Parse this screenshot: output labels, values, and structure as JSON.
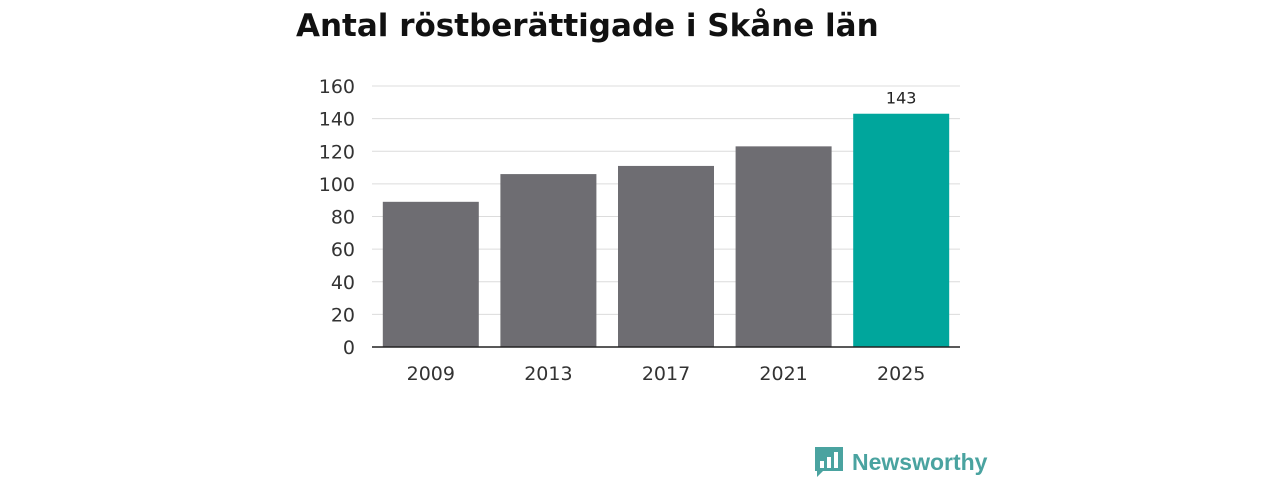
{
  "header": {
    "title": "Antal röstberättigade i Skåne län"
  },
  "chart_data": {
    "type": "bar",
    "title": "Antal röstberättigade i Skåne län",
    "xlabel": "",
    "ylabel": "",
    "categories": [
      "2009",
      "2013",
      "2017",
      "2021",
      "2025"
    ],
    "values": [
      89,
      106,
      111,
      123,
      143
    ],
    "data_labels": [
      "",
      "",
      "",
      "",
      "143"
    ],
    "ylim": [
      0,
      160
    ],
    "yticks": [
      0,
      20,
      40,
      60,
      80,
      100,
      120,
      140,
      160
    ],
    "grid": true,
    "colors": {
      "default": "#6e6d72",
      "highlight": "#00a69c",
      "highlight_index": 4
    }
  },
  "brand": {
    "name": "Newsworthy",
    "icon": "newsworthy-logo-icon",
    "color": "#4aa3a0"
  }
}
